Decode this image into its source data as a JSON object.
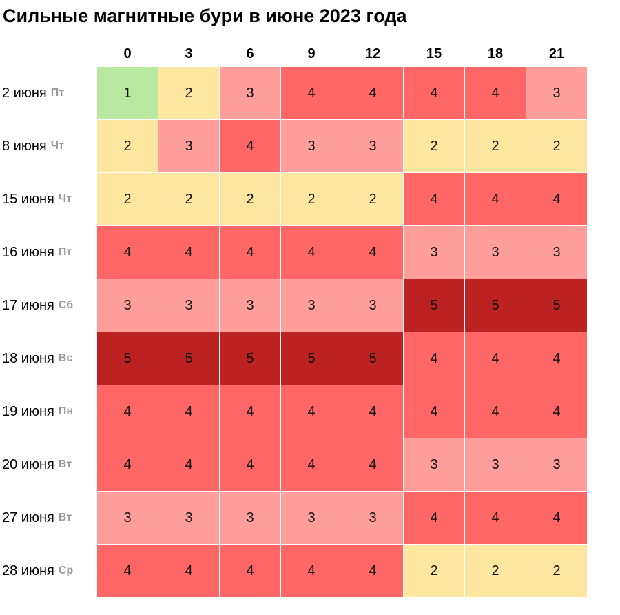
{
  "title": "Сильные магнитные бури в июне 2023 года",
  "colors": {
    "1": "#b9e8a0",
    "2": "#fde7a0",
    "3": "#ff9e9a",
    "4": "#ff6666",
    "5": "#bd2222"
  },
  "chart_data": {
    "type": "heatmap",
    "title": "Сильные магнитные бури в июне 2023 года",
    "columns": [
      "0",
      "3",
      "6",
      "9",
      "12",
      "15",
      "18",
      "21"
    ],
    "rows": [
      {
        "date": "2 июня",
        "dow": "Пт",
        "values": [
          1,
          2,
          3,
          4,
          4,
          4,
          4,
          3
        ]
      },
      {
        "date": "8 июня",
        "dow": "Чт",
        "values": [
          2,
          3,
          4,
          3,
          3,
          2,
          2,
          2
        ]
      },
      {
        "date": "15 июня",
        "dow": "Чт",
        "values": [
          2,
          2,
          2,
          2,
          2,
          4,
          4,
          4
        ]
      },
      {
        "date": "16 июня",
        "dow": "Пт",
        "values": [
          4,
          4,
          4,
          4,
          4,
          3,
          3,
          3
        ]
      },
      {
        "date": "17 июня",
        "dow": "Сб",
        "values": [
          3,
          3,
          3,
          3,
          3,
          5,
          5,
          5
        ]
      },
      {
        "date": "18 июня",
        "dow": "Вс",
        "values": [
          5,
          5,
          5,
          5,
          5,
          4,
          4,
          4
        ]
      },
      {
        "date": "19 июня",
        "dow": "Пн",
        "values": [
          4,
          4,
          4,
          4,
          4,
          4,
          4,
          4
        ]
      },
      {
        "date": "20 июня",
        "dow": "Вт",
        "values": [
          4,
          4,
          4,
          4,
          4,
          3,
          3,
          3
        ]
      },
      {
        "date": "27 июня",
        "dow": "Вт",
        "values": [
          3,
          3,
          3,
          3,
          3,
          4,
          4,
          4
        ]
      },
      {
        "date": "28 июня",
        "dow": "Ср",
        "values": [
          4,
          4,
          4,
          4,
          4,
          2,
          2,
          2
        ]
      }
    ]
  }
}
